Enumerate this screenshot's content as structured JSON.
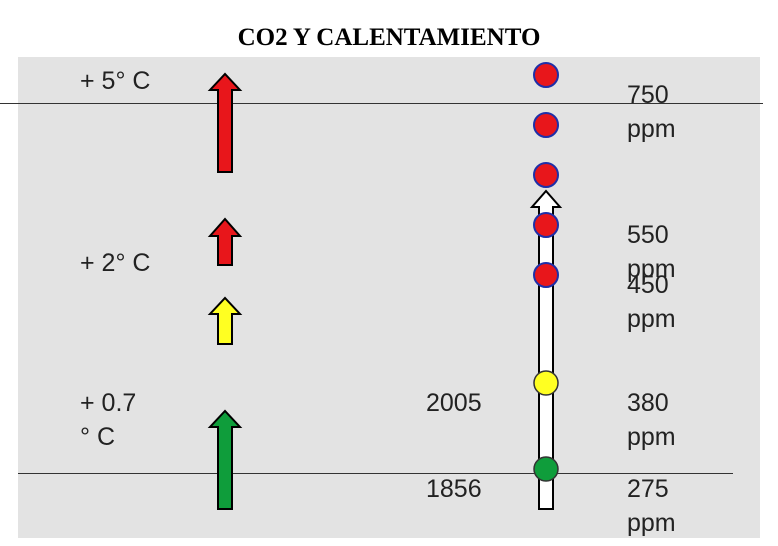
{
  "title": "CO2 Y CALENTAMIENTO",
  "temperatures": [
    {
      "label": "+ 5° C",
      "arrow_color": "#e8161b"
    },
    {
      "label": "+ 2° C",
      "arrow_color": "#e8161b"
    },
    {
      "label": "",
      "arrow_color": "#ffff22"
    },
    {
      "label": "+ 0.7\n° C",
      "arrow_color": "#0f9d3b"
    }
  ],
  "years": {
    "recent": "2005",
    "preindustrial": "1856"
  },
  "ppm_levels": {
    "p750": "750\nppm",
    "p550": "550\nppm",
    "p450": "450\nppm",
    "p380": "380\nppm",
    "p275": "275\nppm"
  },
  "colors": {
    "red": "#e8161b",
    "yellow": "#ffff22",
    "green": "#0f9d3b",
    "dot_outline_red": "#1f2fa8",
    "dot_outline": "#333333",
    "panel_background": "#e3e3e3"
  },
  "legend_icons": [
    "up-arrow-red",
    "up-arrow-yellow",
    "up-arrow-green",
    "circle-red",
    "circle-yellow",
    "circle-green"
  ]
}
